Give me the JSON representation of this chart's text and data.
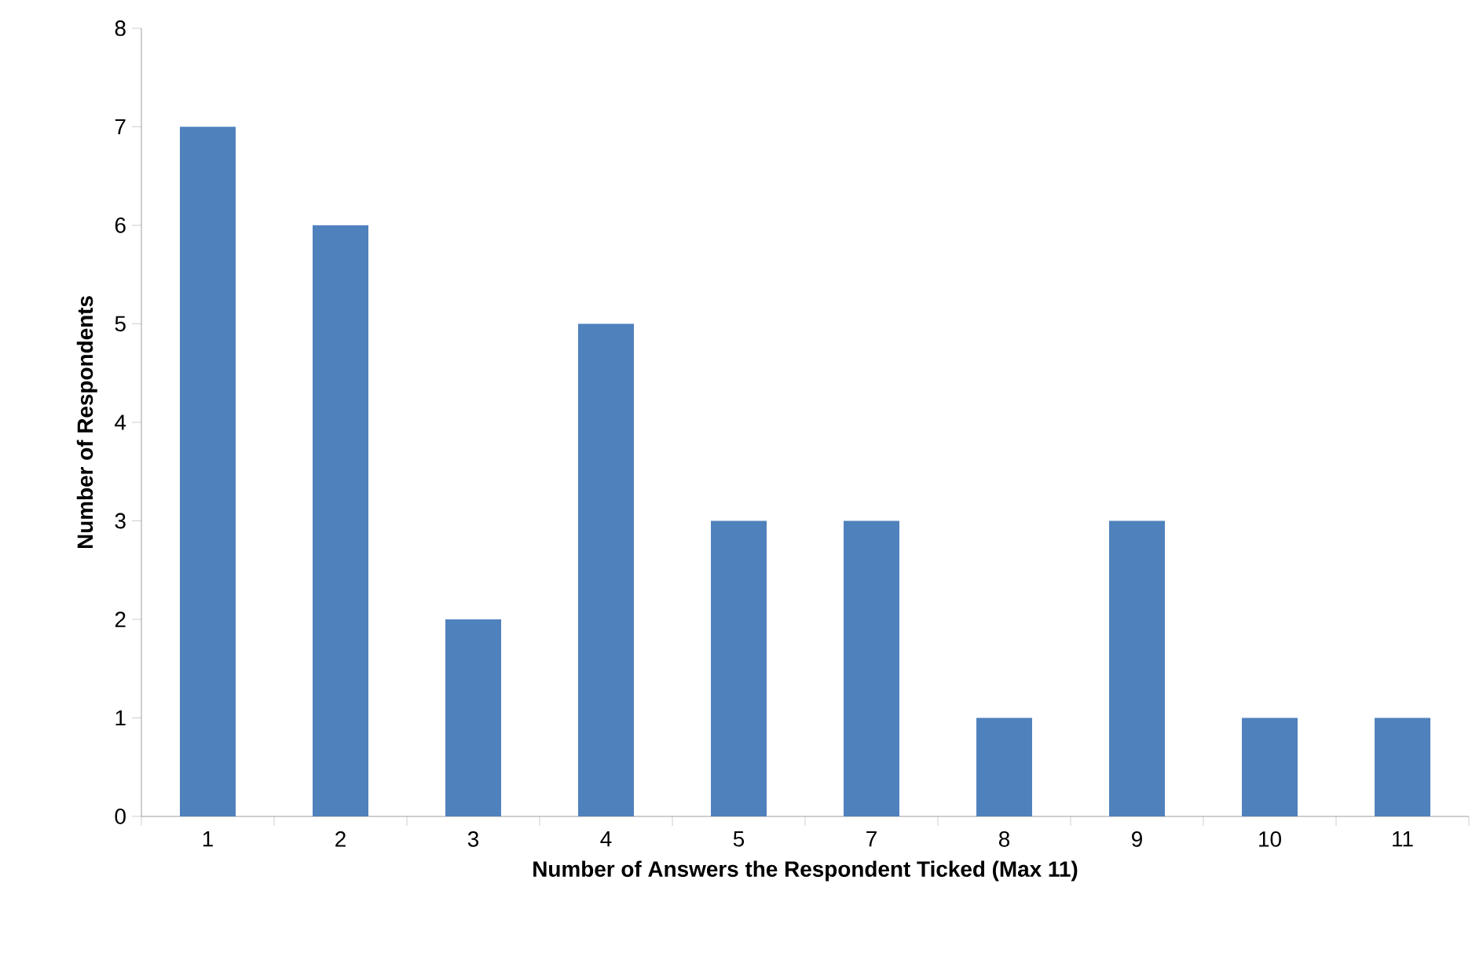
{
  "chart_data": {
    "type": "bar",
    "xlabel": "Number of Answers the Respondent Ticked (Max 11)",
    "ylabel": "Number of Respondents",
    "categories": [
      "1",
      "2",
      "3",
      "4",
      "5",
      "7",
      "8",
      "9",
      "10",
      "11"
    ],
    "values": [
      7,
      6,
      2,
      5,
      3,
      3,
      1,
      3,
      1,
      1
    ],
    "color": "#4f81bd",
    "ylim": [
      0,
      8
    ],
    "yticks": [
      0,
      1,
      2,
      3,
      4,
      5,
      6,
      7,
      8
    ]
  }
}
